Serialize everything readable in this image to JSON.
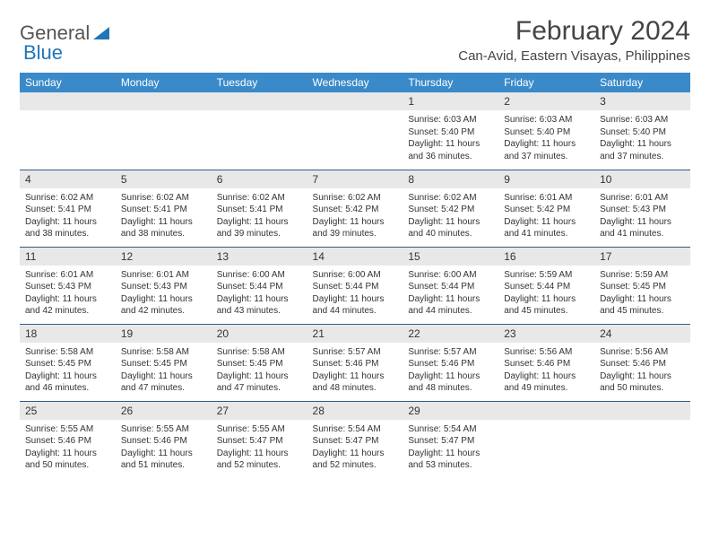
{
  "logo": {
    "text1": "General",
    "text2": "Blue"
  },
  "title": "February 2024",
  "location": "Can-Avid, Eastern Visayas, Philippines",
  "colors": {
    "header_bg": "#3a8ac9",
    "header_text": "#ffffff",
    "daynum_bg": "#e8e8e8",
    "row_divider": "#2f5c8a",
    "logo_gray": "#555555",
    "logo_blue": "#2176b8"
  },
  "weekdays": [
    "Sunday",
    "Monday",
    "Tuesday",
    "Wednesday",
    "Thursday",
    "Friday",
    "Saturday"
  ],
  "weeks": [
    [
      null,
      null,
      null,
      null,
      {
        "n": "1",
        "sr": "6:03 AM",
        "ss": "5:40 PM",
        "dl": "11 hours and 36 minutes."
      },
      {
        "n": "2",
        "sr": "6:03 AM",
        "ss": "5:40 PM",
        "dl": "11 hours and 37 minutes."
      },
      {
        "n": "3",
        "sr": "6:03 AM",
        "ss": "5:40 PM",
        "dl": "11 hours and 37 minutes."
      }
    ],
    [
      {
        "n": "4",
        "sr": "6:02 AM",
        "ss": "5:41 PM",
        "dl": "11 hours and 38 minutes."
      },
      {
        "n": "5",
        "sr": "6:02 AM",
        "ss": "5:41 PM",
        "dl": "11 hours and 38 minutes."
      },
      {
        "n": "6",
        "sr": "6:02 AM",
        "ss": "5:41 PM",
        "dl": "11 hours and 39 minutes."
      },
      {
        "n": "7",
        "sr": "6:02 AM",
        "ss": "5:42 PM",
        "dl": "11 hours and 39 minutes."
      },
      {
        "n": "8",
        "sr": "6:02 AM",
        "ss": "5:42 PM",
        "dl": "11 hours and 40 minutes."
      },
      {
        "n": "9",
        "sr": "6:01 AM",
        "ss": "5:42 PM",
        "dl": "11 hours and 41 minutes."
      },
      {
        "n": "10",
        "sr": "6:01 AM",
        "ss": "5:43 PM",
        "dl": "11 hours and 41 minutes."
      }
    ],
    [
      {
        "n": "11",
        "sr": "6:01 AM",
        "ss": "5:43 PM",
        "dl": "11 hours and 42 minutes."
      },
      {
        "n": "12",
        "sr": "6:01 AM",
        "ss": "5:43 PM",
        "dl": "11 hours and 42 minutes."
      },
      {
        "n": "13",
        "sr": "6:00 AM",
        "ss": "5:44 PM",
        "dl": "11 hours and 43 minutes."
      },
      {
        "n": "14",
        "sr": "6:00 AM",
        "ss": "5:44 PM",
        "dl": "11 hours and 44 minutes."
      },
      {
        "n": "15",
        "sr": "6:00 AM",
        "ss": "5:44 PM",
        "dl": "11 hours and 44 minutes."
      },
      {
        "n": "16",
        "sr": "5:59 AM",
        "ss": "5:44 PM",
        "dl": "11 hours and 45 minutes."
      },
      {
        "n": "17",
        "sr": "5:59 AM",
        "ss": "5:45 PM",
        "dl": "11 hours and 45 minutes."
      }
    ],
    [
      {
        "n": "18",
        "sr": "5:58 AM",
        "ss": "5:45 PM",
        "dl": "11 hours and 46 minutes."
      },
      {
        "n": "19",
        "sr": "5:58 AM",
        "ss": "5:45 PM",
        "dl": "11 hours and 47 minutes."
      },
      {
        "n": "20",
        "sr": "5:58 AM",
        "ss": "5:45 PM",
        "dl": "11 hours and 47 minutes."
      },
      {
        "n": "21",
        "sr": "5:57 AM",
        "ss": "5:46 PM",
        "dl": "11 hours and 48 minutes."
      },
      {
        "n": "22",
        "sr": "5:57 AM",
        "ss": "5:46 PM",
        "dl": "11 hours and 48 minutes."
      },
      {
        "n": "23",
        "sr": "5:56 AM",
        "ss": "5:46 PM",
        "dl": "11 hours and 49 minutes."
      },
      {
        "n": "24",
        "sr": "5:56 AM",
        "ss": "5:46 PM",
        "dl": "11 hours and 50 minutes."
      }
    ],
    [
      {
        "n": "25",
        "sr": "5:55 AM",
        "ss": "5:46 PM",
        "dl": "11 hours and 50 minutes."
      },
      {
        "n": "26",
        "sr": "5:55 AM",
        "ss": "5:46 PM",
        "dl": "11 hours and 51 minutes."
      },
      {
        "n": "27",
        "sr": "5:55 AM",
        "ss": "5:47 PM",
        "dl": "11 hours and 52 minutes."
      },
      {
        "n": "28",
        "sr": "5:54 AM",
        "ss": "5:47 PM",
        "dl": "11 hours and 52 minutes."
      },
      {
        "n": "29",
        "sr": "5:54 AM",
        "ss": "5:47 PM",
        "dl": "11 hours and 53 minutes."
      },
      null,
      null
    ]
  ],
  "labels": {
    "sunrise": "Sunrise: ",
    "sunset": "Sunset: ",
    "daylight": "Daylight: "
  }
}
